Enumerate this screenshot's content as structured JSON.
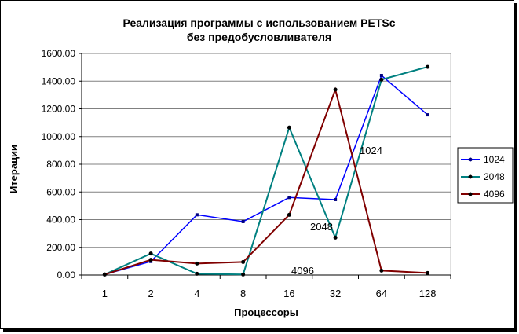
{
  "chart_data": {
    "type": "line",
    "title": "Реализация программы с использованием PETSc",
    "subtitle": "без предобусловливателя",
    "xlabel": "Процессоры",
    "ylabel": "Итерации",
    "categories": [
      "1",
      "2",
      "4",
      "8",
      "16",
      "32",
      "64",
      "128"
    ],
    "yticks": [
      "0.00",
      "200.00",
      "400.00",
      "600.00",
      "800.00",
      "1000.00",
      "1200.00",
      "1400.00",
      "1600.00"
    ],
    "ylim": [
      0,
      1600
    ],
    "grid": true,
    "legend_position": "right",
    "series": [
      {
        "name": "1024",
        "color": "#0000ff",
        "values": [
          4,
          98,
          435,
          386,
          560,
          545,
          1441,
          1157
        ]
      },
      {
        "name": "2048",
        "color": "#008080",
        "values": [
          4,
          155,
          9,
          4,
          1065,
          270,
          1411,
          1503
        ]
      },
      {
        "name": "4096",
        "color": "#800000",
        "values": [
          4,
          110,
          83,
          94,
          435,
          1339,
          32,
          15
        ]
      }
    ],
    "annotations": [
      "1024",
      "2048",
      "4096"
    ]
  }
}
